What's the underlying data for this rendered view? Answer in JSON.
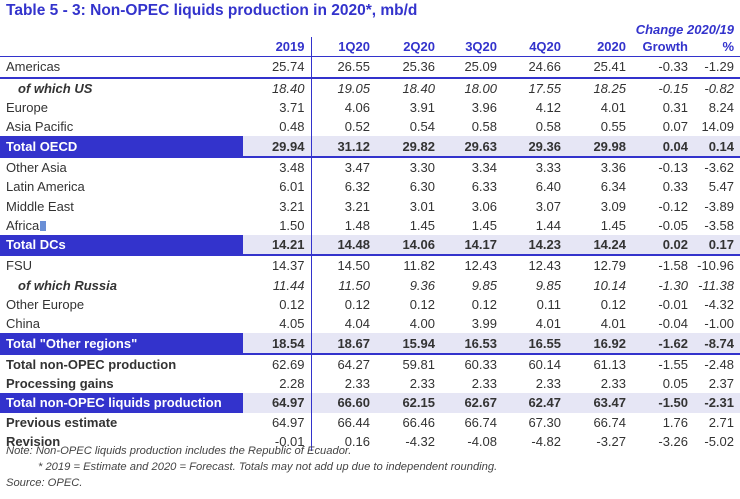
{
  "title": "Table 5 - 3: Non-OPEC liquids production in 2020*, mb/d",
  "change_header": "Change 2020/19",
  "columns": [
    "2019",
    "1Q20",
    "2Q20",
    "3Q20",
    "4Q20",
    "2020",
    "Growth",
    "%"
  ],
  "rows": [
    {
      "label": "Americas",
      "v": [
        "25.74",
        "26.55",
        "25.36",
        "25.09",
        "24.66",
        "25.41",
        "-0.33",
        "-1.29"
      ]
    },
    {
      "label": "of which US",
      "v": [
        "18.40",
        "19.05",
        "18.40",
        "18.00",
        "17.55",
        "18.25",
        "-0.15",
        "-0.82"
      ]
    },
    {
      "label": "Europe",
      "v": [
        "3.71",
        "4.06",
        "3.91",
        "3.96",
        "4.12",
        "4.01",
        "0.31",
        "8.24"
      ]
    },
    {
      "label": "Asia Pacific",
      "v": [
        "0.48",
        "0.52",
        "0.54",
        "0.58",
        "0.58",
        "0.55",
        "0.07",
        "14.09"
      ]
    },
    {
      "label": "Total OECD",
      "v": [
        "29.94",
        "31.12",
        "29.82",
        "29.63",
        "29.36",
        "29.98",
        "0.04",
        "0.14"
      ]
    },
    {
      "label": "Other Asia",
      "v": [
        "3.48",
        "3.47",
        "3.30",
        "3.34",
        "3.33",
        "3.36",
        "-0.13",
        "-3.62"
      ]
    },
    {
      "label": "Latin America",
      "v": [
        "6.01",
        "6.32",
        "6.30",
        "6.33",
        "6.40",
        "6.34",
        "0.33",
        "5.47"
      ]
    },
    {
      "label": "Middle East",
      "v": [
        "3.21",
        "3.21",
        "3.01",
        "3.06",
        "3.07",
        "3.09",
        "-0.12",
        "-3.89"
      ]
    },
    {
      "label": "Africa",
      "v": [
        "1.50",
        "1.48",
        "1.45",
        "1.45",
        "1.44",
        "1.45",
        "-0.05",
        "-3.58"
      ]
    },
    {
      "label": "Total DCs",
      "v": [
        "14.21",
        "14.48",
        "14.06",
        "14.17",
        "14.23",
        "14.24",
        "0.02",
        "0.17"
      ]
    },
    {
      "label": "FSU",
      "v": [
        "14.37",
        "14.50",
        "11.82",
        "12.43",
        "12.43",
        "12.79",
        "-1.58",
        "-10.96"
      ]
    },
    {
      "label": "of which Russia",
      "v": [
        "11.44",
        "11.50",
        "9.36",
        "9.85",
        "9.85",
        "10.14",
        "-1.30",
        "-11.38"
      ]
    },
    {
      "label": "Other Europe",
      "v": [
        "0.12",
        "0.12",
        "0.12",
        "0.12",
        "0.11",
        "0.12",
        "-0.01",
        "-4.32"
      ]
    },
    {
      "label": "China",
      "v": [
        "4.05",
        "4.04",
        "4.00",
        "3.99",
        "4.01",
        "4.01",
        "-0.04",
        "-1.00"
      ]
    },
    {
      "label": "Total \"Other regions\"",
      "v": [
        "18.54",
        "18.67",
        "15.94",
        "16.53",
        "16.55",
        "16.92",
        "-1.62",
        "-8.74"
      ]
    },
    {
      "label": "Total non-OPEC production",
      "v": [
        "62.69",
        "64.27",
        "59.81",
        "60.33",
        "60.14",
        "61.13",
        "-1.55",
        "-2.48"
      ]
    },
    {
      "label": "Processing gains",
      "v": [
        "2.28",
        "2.33",
        "2.33",
        "2.33",
        "2.33",
        "2.33",
        "0.05",
        "2.37"
      ]
    },
    {
      "label": "Total non-OPEC liquids production",
      "v": [
        "64.97",
        "66.60",
        "62.15",
        "62.67",
        "62.47",
        "63.47",
        "-1.50",
        "-2.31"
      ]
    },
    {
      "label": "Previous estimate",
      "v": [
        "64.97",
        "66.44",
        "66.46",
        "66.74",
        "67.30",
        "66.74",
        "1.76",
        "2.71"
      ]
    },
    {
      "label": "Revision",
      "v": [
        "-0.01",
        "0.16",
        "-4.32",
        "-4.08",
        "-4.82",
        "-3.27",
        "-3.26",
        "-5.02"
      ]
    }
  ],
  "notes": [
    "Note: Non-OPEC liquids production includes the Republic of Ecuador.",
    "* 2019 = Estimate and 2020 = Forecast. Totals may not add up due to independent rounding.",
    "Source: OPEC."
  ],
  "colors": {
    "accent": "#3333cc",
    "highlight_bg": "#e6e6f5",
    "text": "#333333"
  }
}
